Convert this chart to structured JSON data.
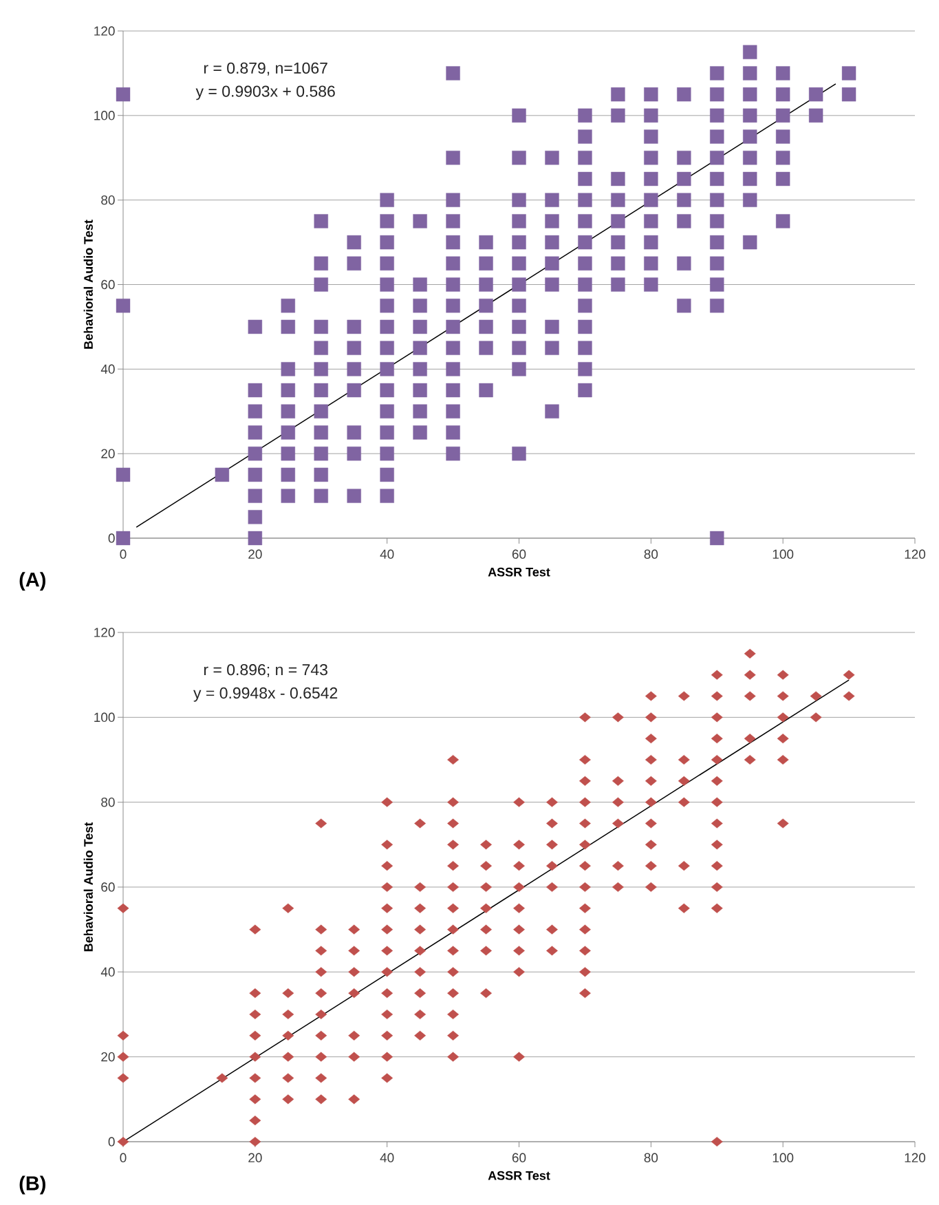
{
  "chart_data": [
    {
      "type": "scatter",
      "xlabel": "ASSR Test",
      "ylabel": "Behavioral Audio Test",
      "annotations": [
        "r = 0.879, n=1067",
        "y = 0.9903x + 0.586",
        "(A)"
      ],
      "xlim": [
        0,
        120
      ],
      "ylim": [
        0,
        120
      ],
      "xticks": [
        0,
        20,
        40,
        60,
        80,
        100,
        120
      ],
      "yticks": [
        0,
        20,
        40,
        60,
        80,
        100,
        120
      ],
      "grid": "y",
      "series": [
        {
          "marker": "square",
          "color": "#8064a2",
          "x": [
            0,
            0,
            0,
            0,
            15,
            20,
            20,
            20,
            20,
            20,
            20,
            20,
            20,
            20,
            25,
            25,
            25,
            25,
            25,
            25,
            25,
            25,
            25,
            30,
            30,
            30,
            30,
            30,
            30,
            30,
            30,
            30,
            30,
            30,
            30,
            35,
            35,
            35,
            35,
            35,
            35,
            35,
            35,
            35,
            40,
            40,
            40,
            40,
            40,
            40,
            40,
            40,
            40,
            40,
            40,
            40,
            40,
            40,
            40,
            45,
            45,
            45,
            45,
            45,
            45,
            45,
            45,
            45,
            50,
            50,
            50,
            50,
            50,
            50,
            50,
            50,
            50,
            50,
            50,
            50,
            50,
            50,
            50,
            55,
            55,
            55,
            55,
            55,
            55,
            55,
            60,
            60,
            60,
            60,
            60,
            60,
            60,
            60,
            60,
            60,
            60,
            60,
            65,
            65,
            65,
            65,
            65,
            65,
            65,
            65,
            65,
            70,
            70,
            70,
            70,
            70,
            70,
            70,
            70,
            70,
            70,
            70,
            70,
            70,
            70,
            75,
            75,
            75,
            75,
            75,
            75,
            75,
            75,
            80,
            80,
            80,
            80,
            80,
            80,
            80,
            80,
            80,
            80,
            85,
            85,
            85,
            85,
            85,
            85,
            85,
            90,
            90,
            90,
            90,
            90,
            90,
            90,
            90,
            90,
            90,
            90,
            90,
            90,
            95,
            95,
            95,
            95,
            95,
            95,
            95,
            95,
            95,
            100,
            100,
            100,
            100,
            100,
            100,
            100,
            105,
            105,
            110,
            110
          ],
          "values": [
            105,
            55,
            15,
            0,
            15,
            50,
            35,
            30,
            25,
            20,
            15,
            10,
            5,
            0,
            55,
            50,
            40,
            35,
            30,
            25,
            20,
            15,
            10,
            75,
            65,
            60,
            50,
            45,
            40,
            35,
            30,
            25,
            20,
            15,
            10,
            70,
            65,
            50,
            45,
            40,
            35,
            25,
            20,
            10,
            80,
            75,
            70,
            65,
            60,
            55,
            50,
            45,
            40,
            35,
            30,
            25,
            20,
            15,
            10,
            75,
            60,
            55,
            50,
            45,
            40,
            35,
            30,
            25,
            110,
            90,
            80,
            75,
            70,
            65,
            60,
            55,
            50,
            45,
            40,
            35,
            30,
            25,
            20,
            70,
            65,
            60,
            55,
            50,
            45,
            35,
            100,
            90,
            80,
            75,
            70,
            65,
            60,
            55,
            50,
            45,
            40,
            20,
            90,
            80,
            75,
            70,
            65,
            60,
            50,
            45,
            30,
            100,
            95,
            90,
            85,
            80,
            75,
            70,
            65,
            60,
            55,
            50,
            45,
            40,
            35,
            105,
            100,
            85,
            80,
            75,
            70,
            65,
            60,
            105,
            100,
            95,
            90,
            85,
            80,
            75,
            70,
            65,
            60,
            105,
            90,
            85,
            80,
            75,
            65,
            55,
            110,
            105,
            100,
            95,
            90,
            85,
            80,
            75,
            70,
            65,
            60,
            55,
            0,
            115,
            110,
            105,
            100,
            95,
            90,
            85,
            80,
            70,
            110,
            105,
            100,
            95,
            90,
            85,
            75,
            105,
            100,
            110,
            105
          ]
        },
        {
          "type": "line",
          "color": "#000000",
          "x": [
            2,
            108
          ],
          "values": [
            2.6,
            107.5
          ]
        }
      ]
    },
    {
      "type": "scatter",
      "xlabel": "ASSR Test",
      "ylabel": "Behavioral Audio Test",
      "annotations": [
        "r = 0.896; n = 743",
        "y = 0.9948x - 0.6542",
        "(B)"
      ],
      "xlim": [
        0,
        120
      ],
      "ylim": [
        0,
        120
      ],
      "xticks": [
        0,
        20,
        40,
        60,
        80,
        100,
        120
      ],
      "yticks": [
        0,
        20,
        40,
        60,
        80,
        100,
        120
      ],
      "grid": "y",
      "series": [
        {
          "marker": "diamond",
          "color": "#c0504d",
          "x": [
            0,
            0,
            0,
            0,
            0,
            15,
            20,
            20,
            20,
            20,
            20,
            20,
            20,
            20,
            20,
            25,
            25,
            25,
            25,
            25,
            25,
            25,
            30,
            30,
            30,
            30,
            30,
            30,
            30,
            30,
            30,
            30,
            35,
            35,
            35,
            35,
            35,
            35,
            35,
            40,
            40,
            40,
            40,
            40,
            40,
            40,
            40,
            40,
            40,
            40,
            40,
            40,
            45,
            45,
            45,
            45,
            45,
            45,
            45,
            45,
            45,
            50,
            50,
            50,
            50,
            50,
            50,
            50,
            50,
            50,
            50,
            50,
            50,
            50,
            50,
            55,
            55,
            55,
            55,
            55,
            55,
            55,
            60,
            60,
            60,
            60,
            60,
            60,
            60,
            60,
            60,
            65,
            65,
            65,
            65,
            65,
            65,
            65,
            70,
            70,
            70,
            70,
            70,
            70,
            70,
            70,
            70,
            70,
            70,
            70,
            70,
            75,
            75,
            75,
            75,
            75,
            75,
            80,
            80,
            80,
            80,
            80,
            80,
            80,
            80,
            80,
            80,
            85,
            85,
            85,
            85,
            85,
            85,
            90,
            90,
            90,
            90,
            90,
            90,
            90,
            90,
            90,
            90,
            90,
            90,
            90,
            95,
            95,
            95,
            95,
            95,
            100,
            100,
            100,
            100,
            100,
            100,
            105,
            105,
            110,
            110
          ],
          "values": [
            55,
            25,
            20,
            15,
            0,
            15,
            50,
            35,
            30,
            25,
            20,
            15,
            10,
            5,
            0,
            55,
            35,
            30,
            25,
            20,
            15,
            10,
            75,
            50,
            45,
            40,
            35,
            30,
            25,
            20,
            15,
            10,
            50,
            45,
            40,
            35,
            25,
            20,
            10,
            80,
            70,
            65,
            60,
            55,
            50,
            45,
            40,
            35,
            30,
            25,
            20,
            15,
            75,
            60,
            55,
            50,
            45,
            40,
            35,
            30,
            25,
            90,
            80,
            75,
            70,
            65,
            60,
            55,
            50,
            45,
            40,
            35,
            30,
            25,
            20,
            70,
            65,
            60,
            55,
            50,
            45,
            35,
            80,
            70,
            65,
            60,
            55,
            50,
            45,
            40,
            20,
            80,
            75,
            70,
            65,
            60,
            50,
            45,
            100,
            90,
            85,
            80,
            75,
            70,
            65,
            60,
            55,
            50,
            45,
            40,
            35,
            100,
            85,
            80,
            75,
            65,
            60,
            105,
            100,
            95,
            90,
            85,
            80,
            75,
            70,
            65,
            60,
            105,
            90,
            85,
            80,
            65,
            55,
            110,
            105,
            100,
            95,
            90,
            85,
            80,
            75,
            70,
            65,
            60,
            55,
            0,
            115,
            110,
            105,
            95,
            90,
            110,
            105,
            100,
            95,
            90,
            75,
            105,
            100,
            110,
            105
          ]
        },
        {
          "type": "line",
          "color": "#000000",
          "x": [
            0,
            110
          ],
          "values": [
            0,
            108.8
          ]
        }
      ]
    }
  ]
}
